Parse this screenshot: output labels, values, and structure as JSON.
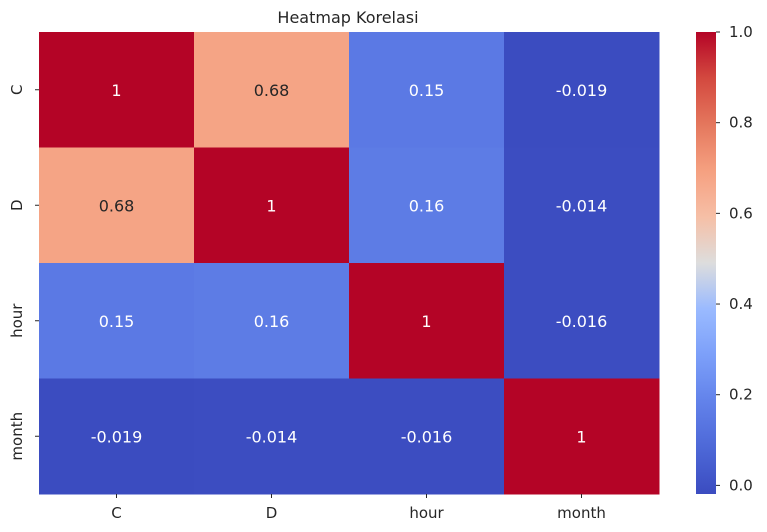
{
  "chart_data": {
    "type": "heatmap",
    "title": "Heatmap Korelasi",
    "xlabel": "",
    "ylabel": "",
    "x_categories": [
      "C",
      "D",
      "hour",
      "month"
    ],
    "y_categories": [
      "C",
      "D",
      "hour",
      "month"
    ],
    "values": [
      [
        1,
        0.68,
        0.15,
        -0.019
      ],
      [
        0.68,
        1,
        0.16,
        -0.014
      ],
      [
        0.15,
        0.16,
        1,
        -0.016
      ],
      [
        -0.019,
        -0.014,
        -0.016,
        1
      ]
    ],
    "annotations": [
      [
        "1",
        "0.68",
        "0.15",
        "-0.019"
      ],
      [
        "0.68",
        "1",
        "0.16",
        "-0.014"
      ],
      [
        "0.15",
        "0.16",
        "1",
        "-0.016"
      ],
      [
        "-0.019",
        "-0.014",
        "-0.016",
        "1"
      ]
    ],
    "colormap": "coolwarm",
    "colorbar": {
      "range": [
        -0.019,
        1.0
      ],
      "ticks": [
        0.0,
        0.2,
        0.4,
        0.6,
        0.8,
        1.0
      ],
      "tick_labels": [
        "0.0",
        "0.2",
        "0.4",
        "0.6",
        "0.8",
        "1.0"
      ]
    },
    "colors": {
      "low": "#3b4cc0",
      "mid": "#dddddd",
      "high": "#b40426",
      "text_dark": "#262626",
      "text_light": "#ffffff"
    }
  }
}
